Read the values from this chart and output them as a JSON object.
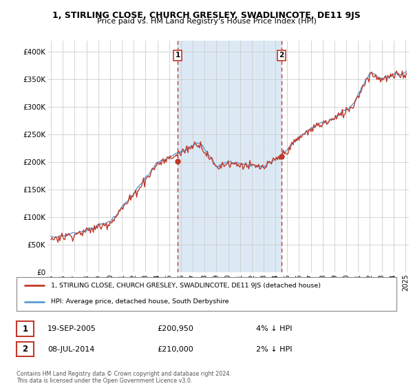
{
  "title": "1, STIRLING CLOSE, CHURCH GRESLEY, SWADLINCOTE, DE11 9JS",
  "subtitle": "Price paid vs. HM Land Registry's House Price Index (HPI)",
  "fig_bg_color": "#ffffff",
  "plot_bg_color": "#ffffff",
  "shade_color": "#dce9f5",
  "grid_color": "#cccccc",
  "legend_line1": "1, STIRLING CLOSE, CHURCH GRESLEY, SWADLINCOTE, DE11 9JS (detached house)",
  "legend_line2": "HPI: Average price, detached house, South Derbyshire",
  "annotation1_label": "1",
  "annotation1_date": "19-SEP-2005",
  "annotation1_price": "£200,950",
  "annotation1_pct": "4% ↓ HPI",
  "annotation2_label": "2",
  "annotation2_date": "08-JUL-2014",
  "annotation2_price": "£210,000",
  "annotation2_pct": "2% ↓ HPI",
  "footer": "Contains HM Land Registry data © Crown copyright and database right 2024.\nThis data is licensed under the Open Government Licence v3.0.",
  "ylim": [
    0,
    420000
  ],
  "yticks": [
    0,
    50000,
    100000,
    150000,
    200000,
    250000,
    300000,
    350000,
    400000
  ],
  "ytick_labels": [
    "£0",
    "£50K",
    "£100K",
    "£150K",
    "£200K",
    "£250K",
    "£300K",
    "£350K",
    "£400K"
  ],
  "sale1_x": 2005.72,
  "sale1_y": 200950,
  "sale2_x": 2014.52,
  "sale2_y": 210000,
  "vline1_x": 2005.72,
  "vline2_x": 2014.52,
  "hpi_color": "#5b9bd5",
  "price_color": "#c0392b",
  "sale_marker_color": "#c0392b",
  "vline_color": "#c0392b",
  "xlim_left": 1994.7,
  "xlim_right": 2025.3
}
